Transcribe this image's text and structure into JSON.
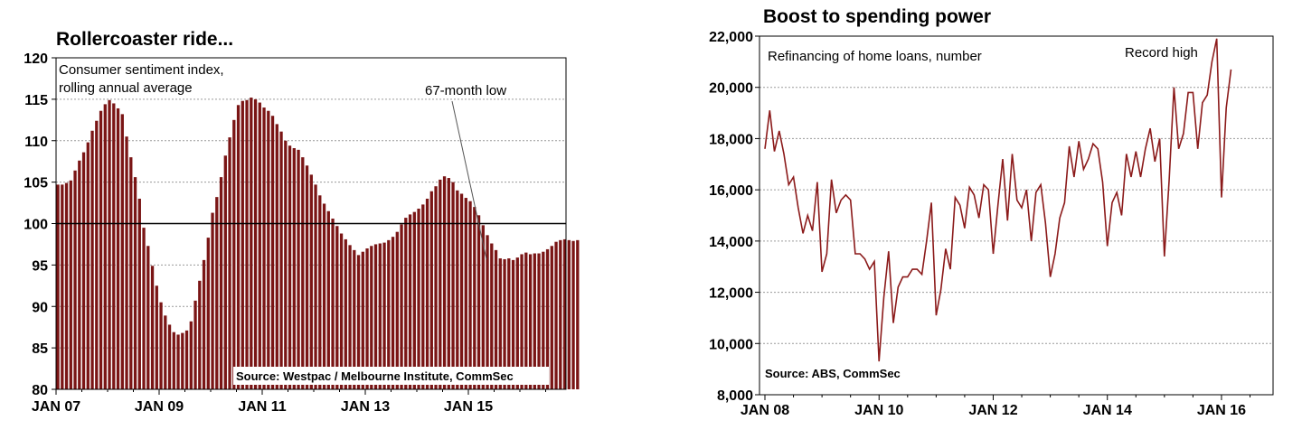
{
  "colors": {
    "bar": "#7a1515",
    "line": "#8b1a1a",
    "grid": "#9a9a9a",
    "axis": "#000000"
  },
  "chart_data": [
    {
      "type": "bar",
      "title": "Rollercoaster ride...",
      "subtitle_line1": "Consumer sentiment index,",
      "subtitle_line2": "rolling annual average",
      "annotation": "67-month low",
      "source": "Source: Westpac / Melbourne Institute, CommSec",
      "ylim": [
        80,
        120
      ],
      "yticks": [
        80,
        85,
        90,
        95,
        100,
        105,
        110,
        115,
        120
      ],
      "reference_line": 100,
      "xtick_labels": [
        "JAN 07",
        "JAN 09",
        "JAN 11",
        "JAN 13",
        "JAN 15"
      ],
      "x_start": "2007-01",
      "grid": true,
      "values": [
        104.7,
        104.7,
        104.9,
        105.2,
        106.4,
        107.6,
        108.6,
        109.8,
        111.2,
        112.4,
        113.6,
        114.4,
        114.9,
        114.5,
        113.9,
        113.2,
        110.5,
        108.0,
        105.6,
        103.0,
        99.5,
        97.3,
        94.9,
        92.5,
        90.5,
        88.9,
        87.8,
        86.9,
        86.6,
        86.8,
        87.1,
        88.2,
        90.7,
        93.1,
        95.6,
        98.3,
        101.3,
        103.2,
        105.6,
        108.2,
        110.4,
        112.5,
        114.3,
        114.8,
        114.9,
        115.2,
        115.0,
        114.6,
        114.0,
        113.6,
        113.0,
        112.0,
        111.1,
        110.0,
        109.4,
        109.1,
        108.9,
        108.0,
        107.0,
        105.9,
        104.7,
        103.4,
        102.4,
        101.5,
        100.6,
        99.7,
        98.8,
        98.1,
        97.4,
        96.8,
        96.2,
        96.6,
        97.0,
        97.3,
        97.5,
        97.6,
        97.7,
        98.0,
        98.4,
        99.0,
        99.9,
        100.7,
        101.1,
        101.4,
        101.8,
        102.3,
        103.0,
        103.9,
        104.5,
        105.3,
        105.7,
        105.5,
        105.0,
        104.0,
        103.6,
        103.1,
        102.7,
        102.0,
        101.0,
        99.8,
        98.6,
        97.6,
        96.8,
        95.8,
        95.7,
        95.8,
        95.6,
        95.9,
        96.3,
        96.5,
        96.3,
        96.4,
        96.4,
        96.6,
        96.9,
        97.3,
        97.8,
        98.0,
        98.1,
        98.0,
        97.9,
        98.0
      ]
    },
    {
      "type": "line",
      "title": "Boost to spending power",
      "subtitle": "Refinancing of home loans, number",
      "annotation": "Record high",
      "source": "Source: ABS, CommSec",
      "ylim": [
        8000,
        22000
      ],
      "yticks": [
        8000,
        10000,
        12000,
        14000,
        16000,
        18000,
        20000,
        22000
      ],
      "ytick_labels": [
        "8,000",
        "10,000",
        "12,000",
        "14,000",
        "16,000",
        "18,000",
        "20,000",
        "22,000"
      ],
      "xtick_labels": [
        "JAN 08",
        "JAN 10",
        "JAN 12",
        "JAN 14",
        "JAN 16"
      ],
      "x_start": "2008-01",
      "grid": true,
      "values": [
        17600,
        19100,
        17500,
        18300,
        17400,
        16200,
        16500,
        15300,
        14300,
        15000,
        14400,
        16300,
        12800,
        13500,
        16400,
        15100,
        15600,
        15800,
        15600,
        13500,
        13500,
        13300,
        12900,
        13200,
        9300,
        11800,
        13600,
        10800,
        12200,
        12600,
        12600,
        12900,
        12900,
        12700,
        14000,
        15500,
        11100,
        12100,
        13700,
        12900,
        15700,
        15400,
        14500,
        16100,
        15800,
        14900,
        16200,
        16000,
        13500,
        15400,
        17200,
        14800,
        17400,
        15600,
        15300,
        16000,
        14000,
        15900,
        16200,
        14700,
        12600,
        13500,
        14900,
        15500,
        17700,
        16500,
        17900,
        16800,
        17200,
        17800,
        17600,
        16300,
        13800,
        15500,
        15900,
        15000,
        17400,
        16500,
        17500,
        16500,
        17600,
        18400,
        17100,
        18000,
        13400,
        16400,
        20000,
        17600,
        18200,
        19800,
        19800,
        17600,
        19400,
        19700,
        21000,
        21900,
        15700,
        19200,
        20700
      ]
    }
  ]
}
